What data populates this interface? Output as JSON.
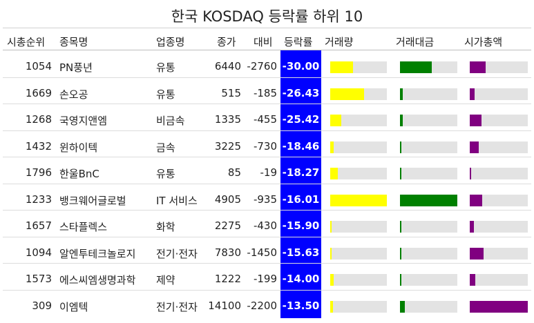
{
  "title": "한국 KOSDAQ 등락률 하위 10",
  "headers": {
    "rank": "시총순위",
    "name": "종목명",
    "sector": "업종명",
    "close": "종가",
    "change": "대비",
    "rate": "등락률",
    "volume": "거래량",
    "amount": "거래대금",
    "cap": "시가총액"
  },
  "colors": {
    "rate_bg": "#0000ff",
    "volume": "#ffff00",
    "amount": "#008000",
    "cap": "#800080",
    "track": "#e3e3e3"
  },
  "chart_data": {
    "type": "table",
    "rows": [
      {
        "rank": "1054",
        "name": "PN풍년",
        "sector": "유통",
        "close": "6440",
        "change": "-2760",
        "rate": "-30.00",
        "volume": 0.4,
        "amount": 0.56,
        "cap": 0.27
      },
      {
        "rank": "1669",
        "name": "손오공",
        "sector": "유통",
        "close": "515",
        "change": "-185",
        "rate": "-26.43",
        "volume": 0.6,
        "amount": 0.05,
        "cap": 0.08
      },
      {
        "rank": "1268",
        "name": "국영지앤엠",
        "sector": "비금속",
        "close": "1335",
        "change": "-455",
        "rate": "-25.42",
        "volume": 0.2,
        "amount": 0.05,
        "cap": 0.2
      },
      {
        "rank": "1432",
        "name": "윈하이텍",
        "sector": "금속",
        "close": "3225",
        "change": "-730",
        "rate": "-18.46",
        "volume": 0.06,
        "amount": 0.03,
        "cap": 0.15
      },
      {
        "rank": "1796",
        "name": "한울BnC",
        "sector": "유통",
        "close": "85",
        "change": "-19",
        "rate": "-18.27",
        "volume": 0.14,
        "amount": 0.01,
        "cap": 0.02
      },
      {
        "rank": "1233",
        "name": "뱅크웨어글로벌",
        "sector": "IT 서비스",
        "close": "4905",
        "change": "-935",
        "rate": "-16.01",
        "volume": 1.0,
        "amount": 1.0,
        "cap": 0.21
      },
      {
        "rank": "1657",
        "name": "스타플렉스",
        "sector": "화학",
        "close": "2275",
        "change": "-430",
        "rate": "-15.90",
        "volume": 0.02,
        "amount": 0.01,
        "cap": 0.07
      },
      {
        "rank": "1094",
        "name": "알엔투테크놀로지",
        "sector": "전기·전자",
        "close": "7830",
        "change": "-1450",
        "rate": "-15.63",
        "volume": 0.03,
        "amount": 0.01,
        "cap": 0.24
      },
      {
        "rank": "1573",
        "name": "에스씨엠생명과학",
        "sector": "제약",
        "close": "1222",
        "change": "-199",
        "rate": "-14.00",
        "volume": 0.06,
        "amount": 0.01,
        "cap": 0.1
      },
      {
        "rank": "309",
        "name": "이엠텍",
        "sector": "전기·전자",
        "close": "14100",
        "change": "-2200",
        "rate": "-13.50",
        "volume": 0.05,
        "amount": 0.09,
        "cap": 1.0
      }
    ]
  }
}
